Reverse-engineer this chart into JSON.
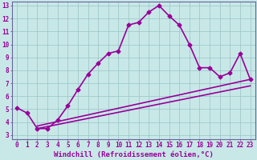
{
  "xlabel": "Windchill (Refroidissement éolien,°C)",
  "bg_color": "#c8e8e8",
  "grid_color": "#a0c8c8",
  "line_color": "#990099",
  "spine_color": "#666699",
  "xlim": [
    -0.5,
    23.5
  ],
  "ylim": [
    2.7,
    13.3
  ],
  "xticks": [
    0,
    1,
    2,
    3,
    4,
    5,
    6,
    7,
    8,
    9,
    10,
    11,
    12,
    13,
    14,
    15,
    16,
    17,
    18,
    19,
    20,
    21,
    22,
    23
  ],
  "yticks": [
    3,
    4,
    5,
    6,
    7,
    8,
    9,
    10,
    11,
    12,
    13
  ],
  "line1_x": [
    0,
    1,
    2,
    3,
    4,
    5,
    6,
    7,
    8,
    9,
    10,
    11,
    12,
    13,
    14,
    15,
    16,
    17,
    18,
    19,
    20,
    21,
    22,
    23
  ],
  "line1_y": [
    5.1,
    4.7,
    3.5,
    3.5,
    4.15,
    5.25,
    6.5,
    7.7,
    8.55,
    9.3,
    9.5,
    11.5,
    11.7,
    12.5,
    13.0,
    12.2,
    11.5,
    10.0,
    8.2,
    8.2,
    7.5,
    7.8,
    9.3,
    7.3
  ],
  "line2_x": [
    2,
    23
  ],
  "line2_y": [
    3.7,
    7.3
  ],
  "line3_x": [
    2,
    23
  ],
  "line3_y": [
    3.5,
    6.8
  ],
  "marker": "D",
  "markersize": 2.5,
  "linewidth": 1.2,
  "xlabel_fontsize": 6.5,
  "tick_fontsize": 5.5
}
